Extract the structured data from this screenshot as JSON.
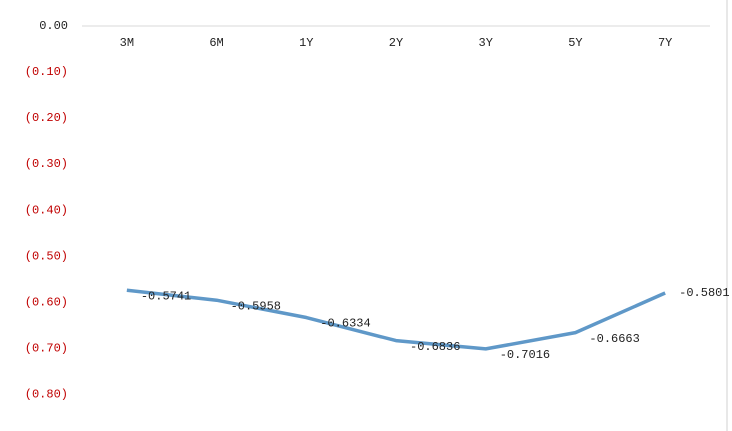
{
  "chart_data": {
    "type": "line",
    "categories": [
      "3M",
      "6M",
      "1Y",
      "2Y",
      "3Y",
      "5Y",
      "7Y"
    ],
    "series": [
      {
        "color": "#5f98c8",
        "values": [
          -0.5741,
          -0.5958,
          -0.6334,
          -0.6836,
          -0.7016,
          -0.6663,
          -0.5801
        ]
      }
    ],
    "ylim": [
      -0.88,
      0
    ],
    "yticks": [
      {
        "value": 0,
        "label": "0.00"
      },
      {
        "value": -0.1,
        "label": "(0.10)"
      },
      {
        "value": -0.2,
        "label": "(0.20)"
      },
      {
        "value": -0.3,
        "label": "(0.30)"
      },
      {
        "value": -0.4,
        "label": "(0.40)"
      },
      {
        "value": -0.5,
        "label": "(0.50)"
      },
      {
        "value": -0.6,
        "label": "(0.60)"
      },
      {
        "value": -0.7,
        "label": "(0.70)"
      },
      {
        "value": -0.8,
        "label": "(0.80)"
      }
    ],
    "negative_tick_color": "#c00000",
    "grid": false
  }
}
